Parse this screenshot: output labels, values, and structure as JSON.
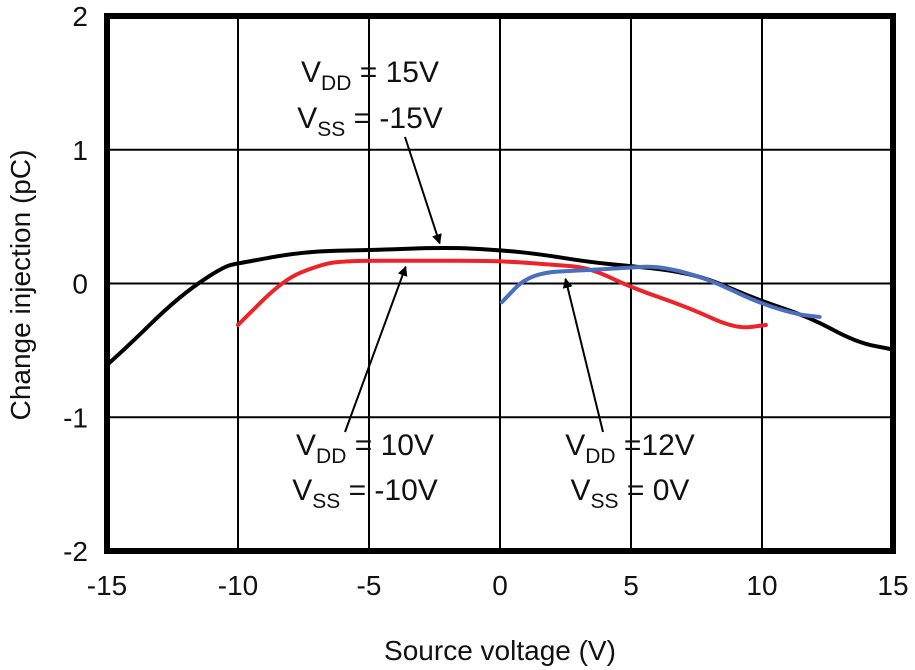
{
  "chart_data": {
    "type": "line",
    "title": "",
    "xlabel": "Source voltage (V)",
    "ylabel": "Change injection (pC)",
    "xlim": [
      -15,
      15
    ],
    "ylim": [
      -2,
      2
    ],
    "xticks": [
      "-15",
      "-10",
      "-5",
      "0",
      "5",
      "10",
      "15"
    ],
    "yticks": [
      "2",
      "1",
      "0",
      "-1",
      "-2"
    ],
    "grid": true,
    "series": [
      {
        "color": "#000000",
        "points": [
          [
            -15,
            -0.61
          ],
          [
            -14,
            -0.43
          ],
          [
            -12.8,
            -0.2
          ],
          [
            -11.7,
            -0.02
          ],
          [
            -10.5,
            0.13
          ],
          [
            -10,
            0.15
          ],
          [
            -7.5,
            0.24
          ],
          [
            -5,
            0.25
          ],
          [
            -2,
            0.27
          ],
          [
            0,
            0.25
          ],
          [
            1.5,
            0.22
          ],
          [
            3.4,
            0.16
          ],
          [
            5,
            0.13
          ],
          [
            6.5,
            0.1
          ],
          [
            7.9,
            0.04
          ],
          [
            9.8,
            -0.12
          ],
          [
            11.8,
            -0.25
          ],
          [
            13.6,
            -0.44
          ],
          [
            14.9,
            -0.49
          ]
        ]
      },
      {
        "color": "#ee2229",
        "points": [
          [
            -10,
            -0.31
          ],
          [
            -8.25,
            0.03
          ],
          [
            -7,
            0.13
          ],
          [
            -6.1,
            0.17
          ],
          [
            -3,
            0.17
          ],
          [
            0,
            0.17
          ],
          [
            2,
            0.14
          ],
          [
            3.4,
            0.12
          ],
          [
            5,
            -0.03
          ],
          [
            7.2,
            -0.18
          ],
          [
            9,
            -0.34
          ],
          [
            10.15,
            -0.31
          ]
        ]
      },
      {
        "color": "#4a6fbf",
        "points": [
          [
            0.07,
            -0.14
          ],
          [
            1.15,
            0.08
          ],
          [
            3.4,
            0.1
          ],
          [
            5,
            0.12
          ],
          [
            6.1,
            0.13
          ],
          [
            7.9,
            0.04
          ],
          [
            9.8,
            -0.14
          ],
          [
            11.3,
            -0.23
          ],
          [
            12.2,
            -0.25
          ]
        ]
      }
    ],
    "annotations": [
      {
        "line1": {
          "main": "V",
          "sub": "DD",
          "rest": " = 15V"
        },
        "line2": {
          "main": "V",
          "sub": "SS",
          "rest": " = -15V"
        },
        "target": [
          -2.3,
          0.27
        ]
      },
      {
        "line1": {
          "main": "V",
          "sub": "DD",
          "rest": " = 10V"
        },
        "line2": {
          "main": "V",
          "sub": "SS",
          "rest": " = -10V"
        },
        "target": [
          -3.6,
          0.17
        ]
      },
      {
        "line1": {
          "main": "V",
          "sub": "DD",
          "rest": " =12V"
        },
        "line2": {
          "main": "V",
          "sub": "SS",
          "rest": " = 0V"
        },
        "target": [
          2.5,
          0.08
        ]
      }
    ]
  }
}
